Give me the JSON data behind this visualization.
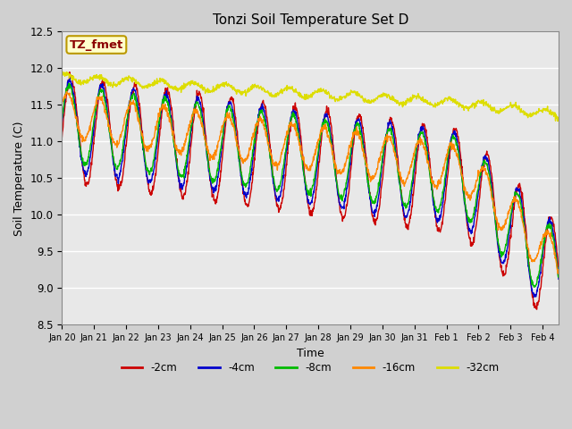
{
  "title": "Tonzi Soil Temperature Set D",
  "xlabel": "Time",
  "ylabel": "Soil Temperature (C)",
  "ylim": [
    8.5,
    12.5
  ],
  "series_labels": [
    "-2cm",
    "-4cm",
    "-8cm",
    "-16cm",
    "-32cm"
  ],
  "series_colors": [
    "#cc0000",
    "#0000cc",
    "#00bb00",
    "#ff8800",
    "#dddd00"
  ],
  "legend_label": "TZ_fmet",
  "legend_label_color": "#8b0000",
  "legend_bg_color": "#ffffcc",
  "xtick_labels": [
    "Jan 20",
    "Jan 21",
    "Jan 22",
    "Jan 23",
    "Jan 24",
    "Jan 25",
    "Jan 26",
    "Jan 27",
    "Jan 28",
    "Jan 29",
    "Jan 30",
    "Jan 31",
    "Feb 1",
    "Feb 2",
    "Feb 3",
    "Feb 4"
  ],
  "plot_bg_color": "#e8e8e8",
  "fig_bg_color": "#d0d0d0",
  "n_points": 1440,
  "n_days": 15.5
}
